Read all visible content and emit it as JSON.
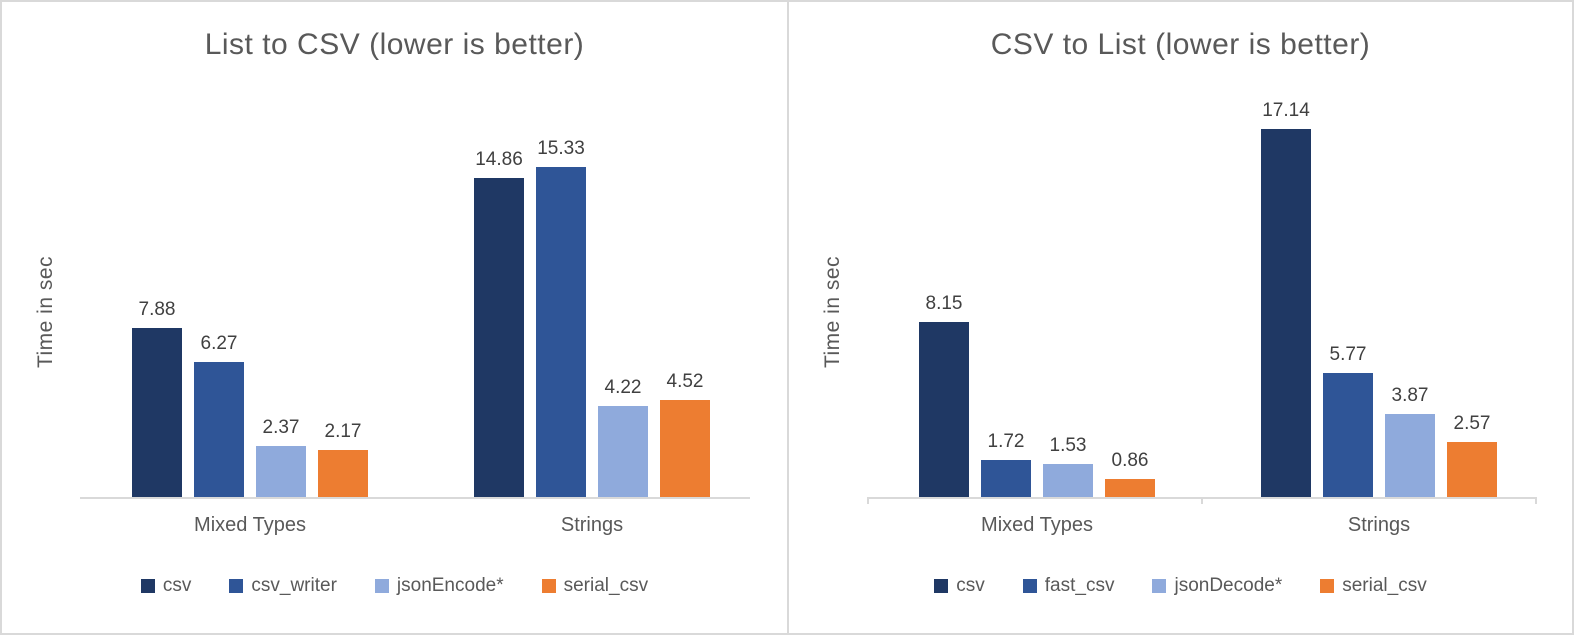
{
  "page": {
    "background_color": "#ffffff",
    "border_color": "#d9d9d9",
    "text_color": "#595959",
    "data_label_color": "#404040"
  },
  "chart_data": [
    {
      "type": "bar",
      "title": "List to CSV (lower is better)",
      "ylabel": "Time in sec",
      "xlabel": "",
      "categories": [
        "Mixed Types",
        "Strings"
      ],
      "series": [
        {
          "name": "csv",
          "color": "#1F3864",
          "values": [
            7.88,
            14.86
          ]
        },
        {
          "name": "csv_writer",
          "color": "#2F5597",
          "values": [
            6.27,
            15.33
          ]
        },
        {
          "name": "jsonEncode*",
          "color": "#8FAADC",
          "values": [
            2.37,
            4.22
          ]
        },
        {
          "name": "serial_csv",
          "color": "#ED7D31",
          "values": [
            2.17,
            4.52
          ]
        }
      ],
      "data_labels": [
        [
          "7.88",
          "6.27",
          "2.37",
          "2.17"
        ],
        [
          "14.86",
          "15.33",
          "4.22",
          "4.52"
        ]
      ],
      "ylim": [
        0,
        17.2
      ],
      "grid": false,
      "axis_ticks": false,
      "legend_position": "bottom"
    },
    {
      "type": "bar",
      "title": "CSV to List (lower is better)",
      "ylabel": "Time in sec",
      "xlabel": "",
      "categories": [
        "Mixed Types",
        "Strings"
      ],
      "series": [
        {
          "name": "csv",
          "color": "#1F3864",
          "values": [
            8.15,
            17.14
          ]
        },
        {
          "name": "fast_csv",
          "color": "#2F5597",
          "values": [
            1.72,
            5.77
          ]
        },
        {
          "name": "jsonDecode*",
          "color": "#8FAADC",
          "values": [
            1.53,
            3.87
          ]
        },
        {
          "name": "serial_csv",
          "color": "#ED7D31",
          "values": [
            0.86,
            2.57
          ]
        }
      ],
      "data_labels": [
        [
          "8.15",
          "1.72",
          "1.53",
          "0.86"
        ],
        [
          "17.14",
          "5.77",
          "3.87",
          "2.57"
        ]
      ],
      "ylim": [
        0,
        17.2
      ],
      "grid": false,
      "axis_ticks": true,
      "legend_position": "bottom"
    }
  ]
}
